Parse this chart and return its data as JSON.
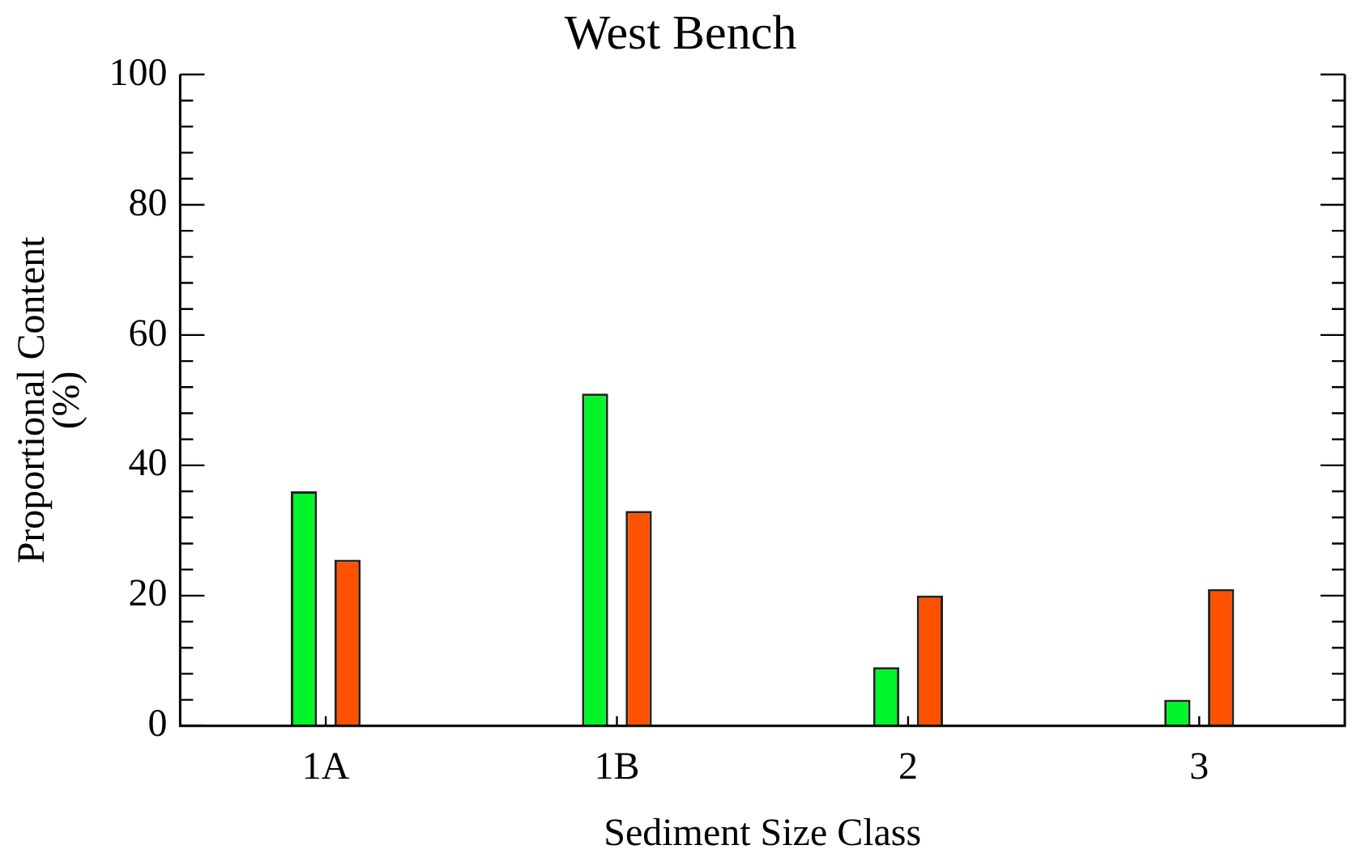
{
  "chart_data": {
    "type": "bar",
    "title": "West Bench",
    "xlabel": "Sediment Size Class",
    "ylabel": "Proportional Content\n(%)",
    "categories": [
      "1A",
      "1B",
      "2",
      "3"
    ],
    "series": [
      {
        "color": "#00f52a",
        "values": [
          36,
          51,
          9,
          4
        ]
      },
      {
        "color": "#ff5200",
        "values": [
          25.5,
          33,
          20,
          21
        ]
      }
    ],
    "ylim": [
      0,
      100
    ],
    "yticks": [
      0,
      {
        "value": 4,
        "label": null
      },
      {
        "value": 8,
        "label": null
      },
      {
        "value": 12,
        "label": null
      },
      {
        "value": 16,
        "label": null
      },
      20,
      {
        "value": 24,
        "label": null
      },
      {
        "value": 28,
        "label": null
      },
      {
        "value": 32,
        "label": null
      },
      {
        "value": 36,
        "label": null
      },
      40,
      {
        "value": 44,
        "label": null
      },
      {
        "value": 48,
        "label": null
      },
      {
        "value": 52,
        "label": null
      },
      {
        "value": 56,
        "label": null
      },
      60,
      {
        "value": 64,
        "label": null
      },
      {
        "value": 68,
        "label": null
      },
      {
        "value": 72,
        "label": null
      },
      {
        "value": 76,
        "label": null
      },
      80,
      {
        "value": 84,
        "label": null
      },
      {
        "value": 88,
        "label": null
      },
      {
        "value": 92,
        "label": null
      },
      {
        "value": 96,
        "label": null
      },
      100
    ],
    "grid": false,
    "legend": false
  }
}
